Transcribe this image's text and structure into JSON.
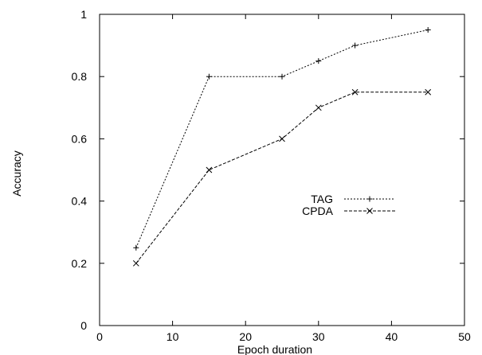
{
  "chart_data": {
    "type": "line",
    "xlabel": "Epoch duration",
    "ylabel": "Accuracy",
    "xlim": [
      0,
      50
    ],
    "ylim": [
      0,
      1
    ],
    "x_ticks": [
      "0",
      "10",
      "20",
      "30",
      "40",
      "50"
    ],
    "y_ticks": [
      "0",
      "0.2",
      "0.4",
      "0.6",
      "0.8",
      "1"
    ],
    "x_tick_values": [
      0,
      10,
      20,
      30,
      40,
      50
    ],
    "y_tick_values": [
      0,
      0.2,
      0.4,
      0.6,
      0.8,
      1
    ],
    "grid": false,
    "legend_placement": "center-right",
    "series": [
      {
        "name": "TAG",
        "marker": "plus",
        "line_style": "dotted",
        "x": [
          5,
          15,
          25,
          30,
          35,
          45
        ],
        "y": [
          0.25,
          0.8,
          0.8,
          0.85,
          0.9,
          0.95
        ]
      },
      {
        "name": "CPDA",
        "marker": "cross",
        "line_style": "dashed",
        "x": [
          5,
          15,
          25,
          30,
          35,
          45
        ],
        "y": [
          0.2,
          0.5,
          0.6,
          0.7,
          0.75,
          0.75
        ]
      }
    ]
  }
}
